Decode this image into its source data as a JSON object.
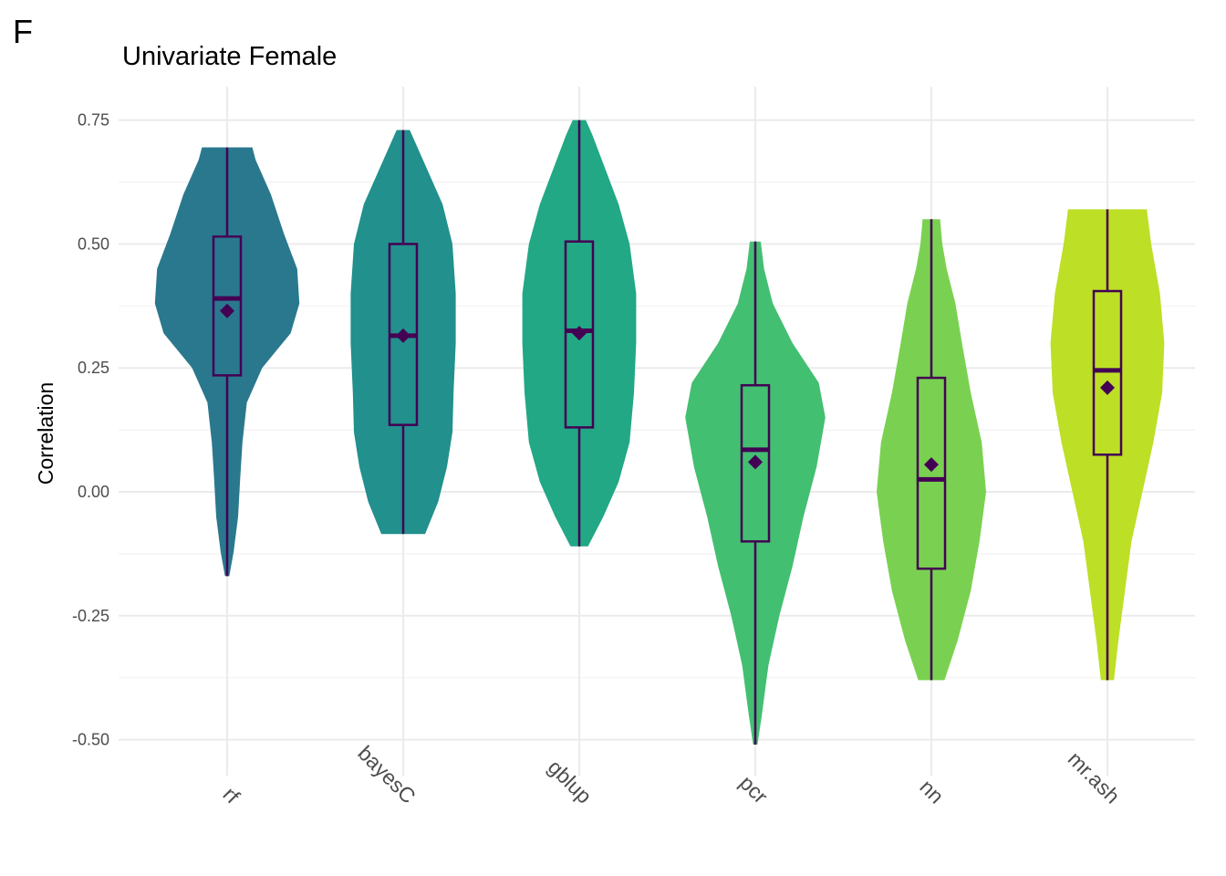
{
  "panel_tag": "F",
  "chart_data": {
    "type": "violin",
    "title": "Univariate Female",
    "xlabel": "",
    "ylabel": "Correlation",
    "ylim": [
      -0.57,
      0.82
    ],
    "yticks": [
      "0.75",
      "0.50",
      "0.25",
      "0.00",
      "-0.25",
      "-0.50"
    ],
    "ytick_values": [
      0.75,
      0.5,
      0.25,
      0.0,
      -0.25,
      -0.5
    ],
    "categories": [
      "rf",
      "bayesC",
      "gblup",
      "pcr",
      "nn",
      "mr.ash"
    ],
    "colors": [
      "#2a788e",
      "#22908c",
      "#22a884",
      "#43bf71",
      "#7ad151",
      "#bddf26"
    ],
    "box_color": "#440154",
    "grid": true,
    "legend": "none",
    "series": [
      {
        "category": "rf",
        "min": -0.17,
        "q1": 0.235,
        "median": 0.39,
        "q3": 0.515,
        "max": 0.695,
        "mean": 0.365,
        "density": [
          [
            -0.17,
            0.02
          ],
          [
            -0.12,
            0.06
          ],
          [
            -0.05,
            0.1
          ],
          [
            0.03,
            0.12
          ],
          [
            0.1,
            0.14
          ],
          [
            0.18,
            0.18
          ],
          [
            0.25,
            0.32
          ],
          [
            0.32,
            0.58
          ],
          [
            0.38,
            0.66
          ],
          [
            0.45,
            0.64
          ],
          [
            0.52,
            0.52
          ],
          [
            0.6,
            0.4
          ],
          [
            0.67,
            0.26
          ],
          [
            0.695,
            0.23
          ]
        ]
      },
      {
        "category": "bayesC",
        "min": -0.085,
        "q1": 0.135,
        "median": 0.315,
        "q3": 0.5,
        "max": 0.73,
        "mean": 0.315,
        "density": [
          [
            -0.085,
            0.2
          ],
          [
            -0.02,
            0.32
          ],
          [
            0.05,
            0.4
          ],
          [
            0.12,
            0.45
          ],
          [
            0.2,
            0.46
          ],
          [
            0.3,
            0.48
          ],
          [
            0.4,
            0.48
          ],
          [
            0.5,
            0.45
          ],
          [
            0.58,
            0.36
          ],
          [
            0.65,
            0.22
          ],
          [
            0.7,
            0.12
          ],
          [
            0.73,
            0.06
          ]
        ]
      },
      {
        "category": "gblup",
        "min": -0.11,
        "q1": 0.13,
        "median": 0.325,
        "q3": 0.505,
        "max": 0.75,
        "mean": 0.32,
        "density": [
          [
            -0.11,
            0.08
          ],
          [
            -0.05,
            0.22
          ],
          [
            0.02,
            0.36
          ],
          [
            0.1,
            0.46
          ],
          [
            0.2,
            0.5
          ],
          [
            0.3,
            0.52
          ],
          [
            0.4,
            0.52
          ],
          [
            0.5,
            0.46
          ],
          [
            0.58,
            0.36
          ],
          [
            0.65,
            0.24
          ],
          [
            0.72,
            0.12
          ],
          [
            0.75,
            0.06
          ]
        ]
      },
      {
        "category": "pcr",
        "min": -0.51,
        "q1": -0.1,
        "median": 0.085,
        "q3": 0.215,
        "max": 0.505,
        "mean": 0.06,
        "density": [
          [
            -0.51,
            0.02
          ],
          [
            -0.45,
            0.06
          ],
          [
            -0.35,
            0.12
          ],
          [
            -0.25,
            0.22
          ],
          [
            -0.15,
            0.34
          ],
          [
            -0.05,
            0.44
          ],
          [
            0.05,
            0.56
          ],
          [
            0.15,
            0.64
          ],
          [
            0.22,
            0.58
          ],
          [
            0.3,
            0.34
          ],
          [
            0.38,
            0.16
          ],
          [
            0.45,
            0.08
          ],
          [
            0.505,
            0.05
          ]
        ]
      },
      {
        "category": "nn",
        "min": -0.38,
        "q1": -0.155,
        "median": 0.025,
        "q3": 0.23,
        "max": 0.55,
        "mean": 0.055,
        "density": [
          [
            -0.38,
            0.12
          ],
          [
            -0.3,
            0.24
          ],
          [
            -0.2,
            0.36
          ],
          [
            -0.1,
            0.44
          ],
          [
            0.0,
            0.5
          ],
          [
            0.1,
            0.46
          ],
          [
            0.2,
            0.36
          ],
          [
            0.3,
            0.28
          ],
          [
            0.38,
            0.22
          ],
          [
            0.45,
            0.14
          ],
          [
            0.5,
            0.1
          ],
          [
            0.55,
            0.08
          ]
        ]
      },
      {
        "category": "mr.ash",
        "min": -0.38,
        "q1": 0.075,
        "median": 0.245,
        "q3": 0.405,
        "max": 0.57,
        "mean": 0.21,
        "density": [
          [
            -0.38,
            0.06
          ],
          [
            -0.3,
            0.1
          ],
          [
            -0.2,
            0.16
          ],
          [
            -0.1,
            0.22
          ],
          [
            0.0,
            0.32
          ],
          [
            0.1,
            0.42
          ],
          [
            0.2,
            0.5
          ],
          [
            0.3,
            0.52
          ],
          [
            0.4,
            0.48
          ],
          [
            0.5,
            0.4
          ],
          [
            0.57,
            0.36
          ]
        ]
      }
    ]
  }
}
